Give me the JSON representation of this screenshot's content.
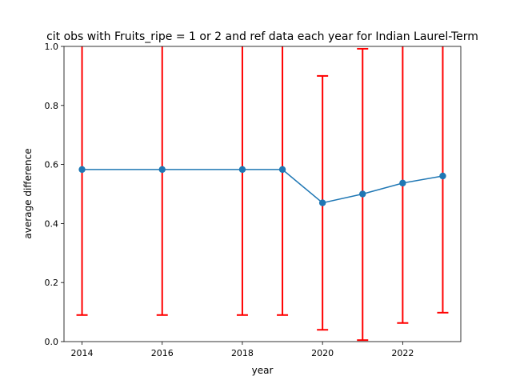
{
  "chart_data": {
    "type": "line",
    "title": "cit obs with Fruits_ripe = 1 or 2 and ref data each year for Indian Laurel-Term",
    "xlabel": "year",
    "ylabel": "average difference",
    "xlim": [
      2013.55,
      2023.45
    ],
    "ylim": [
      0.0,
      1.0
    ],
    "xticks": [
      "2014",
      "2016",
      "2018",
      "2020",
      "2022"
    ],
    "xtick_values": [
      2014,
      2016,
      2018,
      2020,
      2022
    ],
    "yticks": [
      "0.0",
      "0.2",
      "0.4",
      "0.6",
      "0.8",
      "1.0"
    ],
    "ytick_values": [
      0.0,
      0.2,
      0.4,
      0.6,
      0.8,
      1.0
    ],
    "grid": false,
    "series": [
      {
        "x": [
          2014,
          2016,
          2018,
          2019,
          2020,
          2021,
          2022,
          2023
        ],
        "values": [
          0.583,
          0.583,
          0.583,
          0.583,
          0.47,
          0.5,
          0.537,
          0.561
        ],
        "line_color": "#1f77b4",
        "marker": "circle"
      }
    ],
    "error_bars": {
      "color": "#ff0000",
      "lower": [
        0.09,
        0.09,
        0.09,
        0.09,
        0.04,
        0.005,
        0.063,
        0.098
      ],
      "upper": [
        1.076,
        1.076,
        1.076,
        1.076,
        0.9,
        0.992,
        1.011,
        1.024
      ]
    }
  }
}
